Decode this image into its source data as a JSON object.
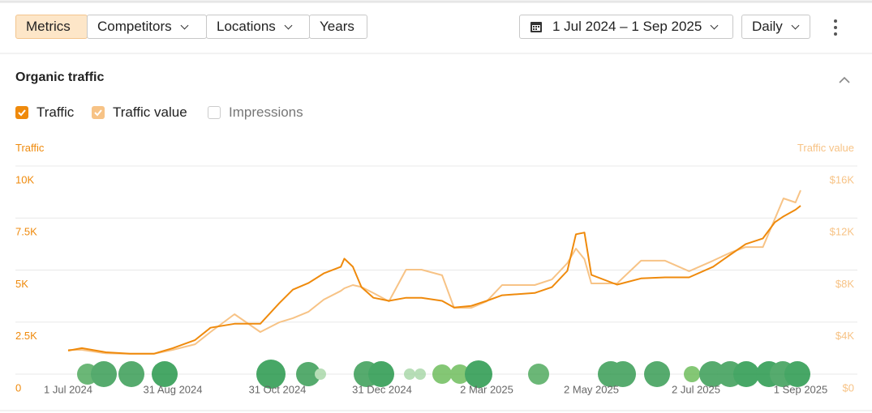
{
  "toolbar": {
    "tabs": [
      "Metrics",
      "Competitors",
      "Locations",
      "Years"
    ],
    "active_tab": "Metrics",
    "date_range": "1 Jul 2024 – 1 Sep 2025",
    "granularity": "Daily"
  },
  "section": {
    "title": "Organic traffic",
    "toggles": [
      {
        "label": "Traffic",
        "checked": true,
        "color": "#ef8a0c"
      },
      {
        "label": "Traffic value",
        "checked": true,
        "color": "#f7c386"
      },
      {
        "label": "Impressions",
        "checked": false,
        "color": "#cccccc"
      }
    ]
  },
  "chart_data": {
    "type": "line",
    "y_label": "Traffic",
    "y2_label": "Traffic value",
    "grid": true,
    "x": [
      "1 Jul 2024",
      "9 Jul 2024",
      "23 Jul 2024",
      "6 Aug 2024",
      "20 Aug 2024",
      "31 Aug 2024",
      "13 Sep 2024",
      "22 Sep 2024",
      "6 Oct 2024",
      "21 Oct 2024",
      "1 Nov 2024",
      "9 Nov 2024",
      "18 Nov 2024",
      "27 Nov 2024",
      "7 Dec 2024",
      "9 Dec 2024",
      "14 Dec 2024",
      "19 Dec 2024",
      "26 Dec 2024",
      "4 Jan 2025",
      "14 Jan 2025",
      "23 Jan 2025",
      "4 Feb 2025",
      "11 Feb 2025",
      "21 Feb 2025",
      "2 Mar 2025",
      "11 Mar 2025",
      "30 Mar 2025",
      "9 Apr 2025",
      "18 Apr 2025",
      "23 Apr 2025",
      "28 Apr 2025",
      "2 May 2025",
      "17 May 2025",
      "31 May 2025",
      "14 Jun 2025",
      "28 Jun 2025",
      "12 Jul 2025",
      "22 Jul 2025",
      "31 Jul 2025",
      "10 Aug 2025",
      "17 Aug 2025",
      "22 Aug 2025",
      "29 Aug 2025",
      "1 Sep 2025"
    ],
    "xlim": [
      "1 Jul 2024",
      "1 Sep 2025"
    ],
    "xticks": [
      "1 Jul 2024",
      "31 Aug 2024",
      "31 Oct 2024",
      "31 Dec 2024",
      "2 Mar 2025",
      "2 May 2025",
      "2 Jul 2025",
      "1 Sep 2025"
    ],
    "ylim": [
      0,
      10000
    ],
    "yticks": [
      0,
      {
        "value": 2500,
        "label": "2.5K"
      },
      {
        "value": 5000,
        "label": "5K"
      },
      {
        "value": 7500,
        "label": "7.5K"
      },
      {
        "value": 10000,
        "label": "10K"
      }
    ],
    "y2lim": [
      0,
      16000
    ],
    "y2ticks": [
      {
        "value": 0,
        "label": "$0"
      },
      {
        "value": 4000,
        "label": "$4K"
      },
      {
        "value": 8000,
        "label": "$8K"
      },
      {
        "value": 12000,
        "label": "$12K"
      },
      {
        "value": 16000,
        "label": "$16K"
      }
    ],
    "series": [
      {
        "name": "Traffic",
        "color": "#ef8a0c",
        "values": [
          1130,
          1250,
          1050,
          980,
          980,
          1250,
          1640,
          2230,
          2420,
          2420,
          3400,
          4060,
          4375,
          4840,
          5160,
          5550,
          5160,
          4180,
          3670,
          3520,
          3670,
          3670,
          3520,
          3200,
          3280,
          3520,
          3790,
          3900,
          4180,
          4960,
          6720,
          6800,
          4770,
          4300,
          4600,
          4650,
          4650,
          5160,
          5740,
          6250,
          6520,
          7300,
          7580,
          7900,
          8090
        ]
      },
      {
        "name": "Traffic value",
        "color": "#f7c386",
        "axis": "y2",
        "values": [
          1870,
          1870,
          1600,
          1560,
          1560,
          1870,
          2300,
          3240,
          4610,
          3240,
          3980,
          4300,
          4790,
          5730,
          6400,
          6600,
          6850,
          6700,
          6230,
          5600,
          8030,
          8030,
          7600,
          5100,
          5100,
          5600,
          6850,
          6850,
          7280,
          8530,
          9650,
          8840,
          6970,
          6970,
          8720,
          8720,
          7910,
          8720,
          9340,
          9770,
          9770,
          11950,
          13510,
          13200,
          14130
        ]
      }
    ]
  }
}
